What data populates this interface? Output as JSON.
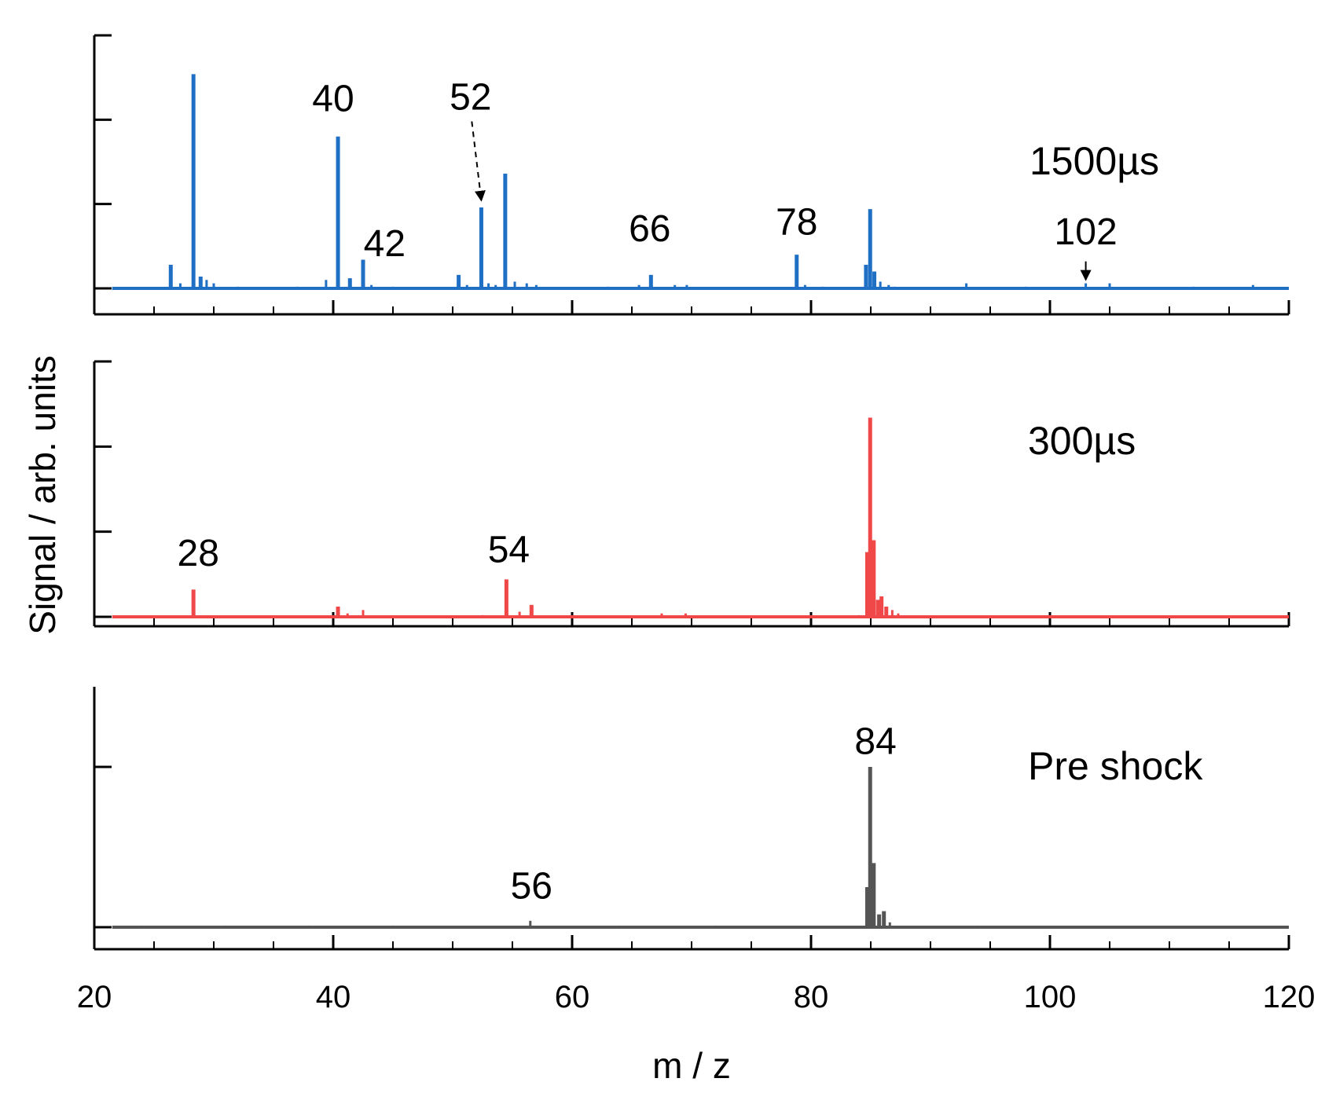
{
  "chart_data": {
    "type": "line",
    "figure": "stacked mass spectra",
    "xlabel": "m / z",
    "ylabel": "Signal / arb. units",
    "xlim": [
      20,
      120
    ],
    "xticks": [
      20,
      40,
      60,
      80,
      100,
      120
    ],
    "xtick_labels": [
      "20",
      "40",
      "60",
      "80",
      "100",
      "120"
    ],
    "panels": [
      {
        "name": "1500µs",
        "label": "1500µs",
        "color": "#1f6fc5",
        "ylim": [
          0,
          1.5
        ],
        "yticks": [
          0,
          0.5,
          1.0,
          1.5
        ],
        "peaks": [
          {
            "x": 26.4,
            "y": 0.14
          },
          {
            "x": 27.2,
            "y": 0.03
          },
          {
            "x": 28.3,
            "y": 1.27
          },
          {
            "x": 28.9,
            "y": 0.07
          },
          {
            "x": 29.4,
            "y": 0.05
          },
          {
            "x": 30.0,
            "y": 0.03
          },
          {
            "x": 32.0,
            "y": 0.01
          },
          {
            "x": 37.0,
            "y": 0.01
          },
          {
            "x": 39.4,
            "y": 0.05
          },
          {
            "x": 40.4,
            "y": 0.9
          },
          {
            "x": 41.4,
            "y": 0.06
          },
          {
            "x": 42.5,
            "y": 0.17
          },
          {
            "x": 43.2,
            "y": 0.02
          },
          {
            "x": 45.0,
            "y": 0.01
          },
          {
            "x": 50.5,
            "y": 0.08
          },
          {
            "x": 51.2,
            "y": 0.02
          },
          {
            "x": 52.4,
            "y": 0.48
          },
          {
            "x": 53.0,
            "y": 0.03
          },
          {
            "x": 53.6,
            "y": 0.02
          },
          {
            "x": 54.4,
            "y": 0.68
          },
          {
            "x": 55.2,
            "y": 0.04
          },
          {
            "x": 56.2,
            "y": 0.03
          },
          {
            "x": 57.0,
            "y": 0.02
          },
          {
            "x": 63.0,
            "y": 0.01
          },
          {
            "x": 65.6,
            "y": 0.02
          },
          {
            "x": 66.6,
            "y": 0.08
          },
          {
            "x": 68.6,
            "y": 0.02
          },
          {
            "x": 69.6,
            "y": 0.02
          },
          {
            "x": 78.8,
            "y": 0.2
          },
          {
            "x": 79.5,
            "y": 0.02
          },
          {
            "x": 81.0,
            "y": 0.01
          },
          {
            "x": 84.6,
            "y": 0.14
          },
          {
            "x": 84.95,
            "y": 0.47
          },
          {
            "x": 85.3,
            "y": 0.1
          },
          {
            "x": 85.8,
            "y": 0.04
          },
          {
            "x": 86.5,
            "y": 0.02
          },
          {
            "x": 87.0,
            "y": 0.01
          },
          {
            "x": 93.0,
            "y": 0.03
          },
          {
            "x": 98.0,
            "y": 0.01
          },
          {
            "x": 103.0,
            "y": 0.03
          },
          {
            "x": 105.0,
            "y": 0.03
          },
          {
            "x": 112.0,
            "y": 0.01
          },
          {
            "x": 117.0,
            "y": 0.02
          }
        ],
        "annotations": [
          {
            "text": "40",
            "x": 40.0,
            "y": 1.05
          },
          {
            "text": "42",
            "x": 44.3,
            "y": 0.19
          },
          {
            "text": "52",
            "x": 51.5,
            "y": 1.06
          },
          {
            "text": "66",
            "x": 66.5,
            "y": 0.28
          },
          {
            "text": "78",
            "x": 78.8,
            "y": 0.32
          },
          {
            "text": "102",
            "x": 103.0,
            "y": 0.26
          }
        ],
        "arrows": [
          {
            "style": "dashed",
            "from": [
              51.6,
              0.99
            ],
            "to": [
              52.4,
              0.52
            ]
          },
          {
            "style": "solid",
            "from": [
              103.0,
              0.16
            ],
            "to": [
              103.0,
              0.05
            ]
          }
        ]
      },
      {
        "name": "300µs",
        "label": "300µs",
        "color": "#f04848",
        "ylim": [
          0,
          1.5
        ],
        "yticks": [
          0,
          0.5,
          1.0,
          1.5
        ],
        "peaks": [
          {
            "x": 28.3,
            "y": 0.16
          },
          {
            "x": 40.4,
            "y": 0.06
          },
          {
            "x": 41.2,
            "y": 0.02
          },
          {
            "x": 42.5,
            "y": 0.04
          },
          {
            "x": 52.5,
            "y": 0.01
          },
          {
            "x": 54.5,
            "y": 0.22
          },
          {
            "x": 55.6,
            "y": 0.03
          },
          {
            "x": 56.6,
            "y": 0.07
          },
          {
            "x": 67.5,
            "y": 0.02
          },
          {
            "x": 69.5,
            "y": 0.02
          },
          {
            "x": 84.0,
            "y": 0.01
          },
          {
            "x": 84.7,
            "y": 0.38
          },
          {
            "x": 84.95,
            "y": 1.17
          },
          {
            "x": 85.25,
            "y": 0.45
          },
          {
            "x": 85.6,
            "y": 0.1
          },
          {
            "x": 85.9,
            "y": 0.12
          },
          {
            "x": 86.3,
            "y": 0.06
          },
          {
            "x": 86.8,
            "y": 0.04
          },
          {
            "x": 87.3,
            "y": 0.02
          }
        ],
        "annotations": [
          {
            "text": "28",
            "x": 28.7,
            "y": 0.3
          },
          {
            "text": "54",
            "x": 54.7,
            "y": 0.32
          }
        ],
        "arrows": []
      },
      {
        "name": "Pre shock",
        "label": "Pre shock",
        "color": "#555555",
        "ylim": [
          0,
          1.5
        ],
        "yticks": [
          0,
          1.0
        ],
        "peaks": [
          {
            "x": 24.0,
            "y": 0.01
          },
          {
            "x": 31.0,
            "y": 0.01
          },
          {
            "x": 38.0,
            "y": 0.01
          },
          {
            "x": 45.0,
            "y": 0.01
          },
          {
            "x": 50.0,
            "y": 0.01
          },
          {
            "x": 56.5,
            "y": 0.04
          },
          {
            "x": 64.0,
            "y": 0.01
          },
          {
            "x": 72.0,
            "y": 0.01
          },
          {
            "x": 84.7,
            "y": 0.25
          },
          {
            "x": 84.95,
            "y": 1.0
          },
          {
            "x": 85.25,
            "y": 0.4
          },
          {
            "x": 85.7,
            "y": 0.08
          },
          {
            "x": 86.1,
            "y": 0.1
          },
          {
            "x": 86.6,
            "y": 0.03
          },
          {
            "x": 94.0,
            "y": 0.01
          },
          {
            "x": 110.0,
            "y": 0.01
          }
        ],
        "annotations": [
          {
            "text": "56",
            "x": 56.6,
            "y": 0.18
          },
          {
            "text": "84",
            "x": 85.4,
            "y": 1.08
          }
        ],
        "arrows": []
      }
    ]
  }
}
